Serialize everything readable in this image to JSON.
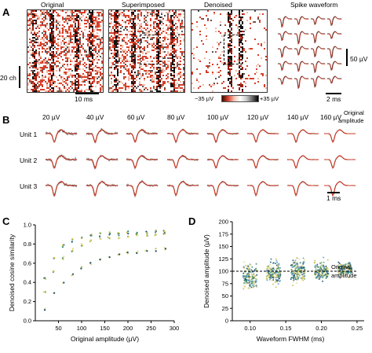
{
  "panelA": {
    "letter": "A",
    "titles": [
      "Original",
      "Superimposed",
      "Denoised",
      "Spike waveform"
    ],
    "scale_ch": "20 ch",
    "scale_ms": "10 ms",
    "scale_uv": "50 µV",
    "scale_ms2": "2 ms",
    "colorbar_min": "−35 µV",
    "colorbar_max": "+35 µV"
  },
  "panelB": {
    "letter": "B",
    "amplitudes": [
      "20 µV",
      "40 µV",
      "60 µV",
      "80 µV",
      "100 µV",
      "120 µV",
      "140 µV",
      "160 µV"
    ],
    "original_label_1": "Original",
    "original_label_2": "amplitude",
    "units": [
      "Unit 1",
      "Unit 2",
      "Unit 3"
    ],
    "scale": "1 ms",
    "colors": {
      "original": "#d6402b",
      "denoised": "#111111",
      "noisy": "#8a8a8a"
    }
  },
  "panelC": {
    "letter": "C",
    "xlabel": "Original amplitude (µV)",
    "ylabel": "Denoised cosine similarity"
  },
  "panelD": {
    "letter": "D",
    "xlabel": "Waveform FWHM (ms)",
    "ylabel": "Denoised amplitude (µV)",
    "ref_label_1": "Original",
    "ref_label_2": "amplitude"
  },
  "chart_data": [
    {
      "type": "scatter",
      "title": "",
      "xlabel": "Original amplitude (µV)",
      "ylabel": "Denoised cosine similarity",
      "xlim": [
        0,
        300
      ],
      "ylim": [
        0.0,
        1.0
      ],
      "xticks": [
        "50",
        "100",
        "150",
        "200",
        "250",
        "300"
      ],
      "yticks": [
        "0.0",
        "0.2",
        "0.4",
        "0.6",
        "0.8",
        "1.0"
      ],
      "grid": false,
      "series": [
        {
          "x": [
            20,
            40,
            60,
            80,
            100,
            120,
            140,
            160,
            180,
            200,
            220,
            240,
            260,
            280
          ],
          "y": [
            0.45,
            0.65,
            0.78,
            0.84,
            0.87,
            0.89,
            0.9,
            0.91,
            0.91,
            0.92,
            0.92,
            0.92,
            0.93,
            0.93
          ]
        },
        {
          "x": [
            20,
            40,
            60,
            80,
            100,
            120,
            140,
            160,
            180,
            200,
            220,
            240,
            260,
            280
          ],
          "y": [
            0.3,
            0.52,
            0.66,
            0.74,
            0.8,
            0.83,
            0.85,
            0.86,
            0.87,
            0.88,
            0.89,
            0.89,
            0.9,
            0.9
          ]
        },
        {
          "x": [
            20,
            40,
            60,
            80,
            100,
            120,
            140,
            160,
            180,
            200,
            220,
            240,
            260,
            280
          ],
          "y": [
            0.12,
            0.28,
            0.4,
            0.48,
            0.55,
            0.6,
            0.64,
            0.67,
            0.69,
            0.71,
            0.72,
            0.73,
            0.74,
            0.75
          ]
        }
      ]
    },
    {
      "type": "scatter",
      "title": "",
      "xlabel": "Waveform FWHM (ms)",
      "ylabel": "Denoised amplitude (µV)",
      "xlim": [
        0.075,
        0.26
      ],
      "ylim": [
        0,
        200
      ],
      "xticks": [
        "0.10",
        "0.15",
        "0.20",
        "0.25"
      ],
      "yticks": [
        "0",
        "25",
        "50",
        "75",
        "100",
        "125",
        "150",
        "175",
        "200"
      ],
      "reference_line_y": 100,
      "clusters": [
        {
          "x_center": 0.1,
          "y_center": 88,
          "y_spread": 45
        },
        {
          "x_center": 0.133,
          "y_center": 95,
          "y_spread": 40
        },
        {
          "x_center": 0.167,
          "y_center": 100,
          "y_spread": 38
        },
        {
          "x_center": 0.2,
          "y_center": 100,
          "y_spread": 30
        },
        {
          "x_center": 0.233,
          "y_center": 103,
          "y_spread": 22
        }
      ]
    }
  ]
}
